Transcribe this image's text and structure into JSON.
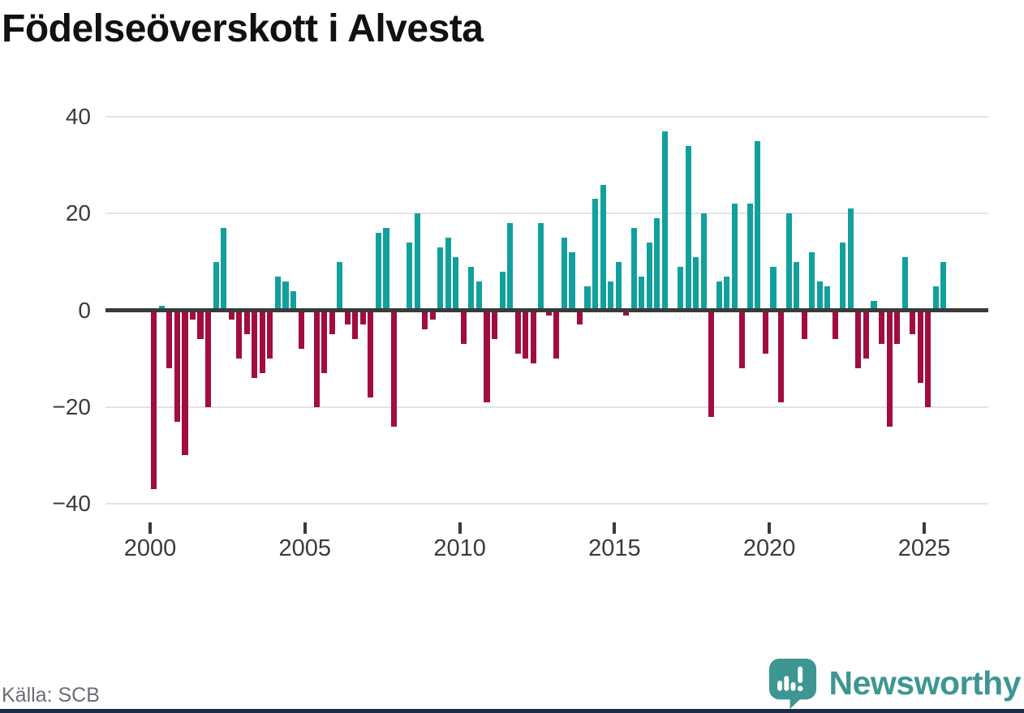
{
  "page": {
    "title": "Födelseöverskott i Alvesta"
  },
  "chart_data": {
    "type": "bar",
    "title": "Födelseöverskott i Alvesta",
    "xlabel": "",
    "ylabel": "",
    "ylim": [
      -40,
      40
    ],
    "y_ticks": [
      40,
      20,
      0,
      -20,
      -40
    ],
    "x_tick_labels": [
      "2000",
      "2005",
      "2010",
      "2015",
      "2020",
      "2025"
    ],
    "grid": "horizontal",
    "legend_position": "none",
    "frequency": "quarterly",
    "quarters": [
      "2000Q1",
      "2000Q2",
      "2000Q3",
      "2000Q4",
      "2001Q1",
      "2001Q2",
      "2001Q3",
      "2001Q4",
      "2002Q1",
      "2002Q2",
      "2002Q3",
      "2002Q4",
      "2003Q1",
      "2003Q2",
      "2003Q3",
      "2003Q4",
      "2004Q1",
      "2004Q2",
      "2004Q3",
      "2004Q4",
      "2005Q1",
      "2005Q2",
      "2005Q3",
      "2005Q4",
      "2006Q1",
      "2006Q2",
      "2006Q3",
      "2006Q4",
      "2007Q1",
      "2007Q2",
      "2007Q3",
      "2007Q4",
      "2008Q1",
      "2008Q2",
      "2008Q3",
      "2008Q4",
      "2009Q1",
      "2009Q2",
      "2009Q3",
      "2009Q4",
      "2010Q1",
      "2010Q2",
      "2010Q3",
      "2010Q4",
      "2011Q1",
      "2011Q2",
      "2011Q3",
      "2011Q4",
      "2012Q1",
      "2012Q2",
      "2012Q3",
      "2012Q4",
      "2013Q1",
      "2013Q2",
      "2013Q3",
      "2013Q4",
      "2014Q1",
      "2014Q2",
      "2014Q3",
      "2014Q4",
      "2015Q1",
      "2015Q2",
      "2015Q3",
      "2015Q4",
      "2016Q1",
      "2016Q2",
      "2016Q3",
      "2016Q4",
      "2017Q1",
      "2017Q2",
      "2017Q3",
      "2017Q4",
      "2018Q1",
      "2018Q2",
      "2018Q3",
      "2018Q4",
      "2019Q1",
      "2019Q2",
      "2019Q3",
      "2019Q4",
      "2020Q1",
      "2020Q2",
      "2020Q3",
      "2020Q4",
      "2021Q1",
      "2021Q2",
      "2021Q3",
      "2021Q4",
      "2022Q1",
      "2022Q2",
      "2022Q3",
      "2022Q4",
      "2023Q1",
      "2023Q2",
      "2023Q3",
      "2023Q4",
      "2024Q1",
      "2024Q2",
      "2024Q3",
      "2024Q4",
      "2025Q1",
      "2025Q2",
      "2025Q3"
    ],
    "values": [
      -37,
      1,
      -12,
      -23,
      -30,
      -2,
      -6,
      -20,
      10,
      17,
      -2,
      -10,
      -5,
      -14,
      -13,
      -10,
      7,
      6,
      4,
      -8,
      0,
      -20,
      -13,
      -5,
      10,
      -3,
      -6,
      -3,
      -18,
      16,
      17,
      -24,
      0,
      14,
      20,
      -4,
      -2,
      13,
      15,
      11,
      -7,
      9,
      6,
      -19,
      -6,
      8,
      18,
      -9,
      -10,
      -11,
      18,
      -1,
      -10,
      15,
      12,
      -3,
      5,
      23,
      26,
      6,
      10,
      -1,
      17,
      7,
      14,
      19,
      37,
      0,
      9,
      34,
      11,
      20,
      -22,
      6,
      7,
      22,
      -12,
      22,
      35,
      -9,
      9,
      -19,
      20,
      10,
      -6,
      12,
      6,
      5,
      -6,
      14,
      21,
      -12,
      -10,
      2,
      -7,
      -24,
      -7,
      11,
      -5,
      -15,
      -20,
      5,
      10
    ],
    "positive_color": "#12a09d",
    "negative_color": "#a10d40",
    "zero_line_color": "#3a3a3a",
    "gridline_color": "#e4e4e4"
  },
  "footer": {
    "source": "Källa: SCB",
    "brand": "Newsworthy",
    "brand_color": "#3e9693",
    "bottom_strip_color": "#1e2a47"
  }
}
